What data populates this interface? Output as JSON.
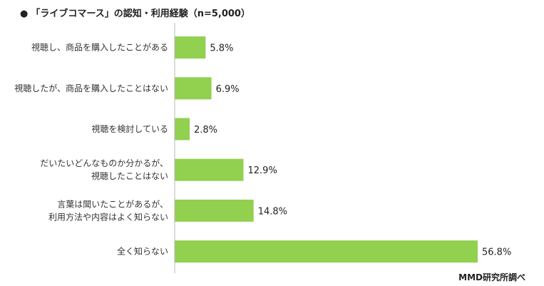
{
  "title": "「ライブコマース」の認知・利用経験（n=5,000）",
  "title_bullet": "●",
  "source": "MMD研究所調べ",
  "colors": {
    "bar": "#92d050",
    "axis": "#b7b7b7"
  },
  "chart_data": {
    "type": "bar",
    "orientation": "horizontal",
    "categories": [
      [
        "視聴し、商品を購入したことがある"
      ],
      [
        "視聴したが、商品を購入したことはない"
      ],
      [
        "視聴を検討している"
      ],
      [
        "だいたいどんなものか分かるが、",
        "視聴したことはない"
      ],
      [
        "言葉は聞いたことがあるが、",
        "利用方法や内容はよく知らない"
      ],
      [
        "全く知らない"
      ]
    ],
    "values": [
      5.8,
      6.9,
      2.8,
      12.9,
      14.8,
      56.8
    ],
    "value_labels": [
      "5.8%",
      "6.9%",
      "2.8%",
      "12.9%",
      "14.8%",
      "56.8%"
    ],
    "unit": "%",
    "xlim": [
      0,
      56.8
    ],
    "grid": false,
    "legend": "none"
  }
}
